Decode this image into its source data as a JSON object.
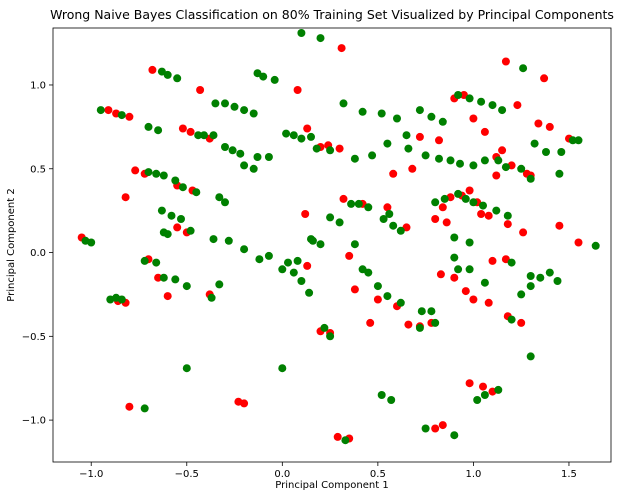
{
  "chart_data": {
    "type": "scatter",
    "title": "Wrong Naive Bayes Classification on 80% Training Set Visualized by Principal Components",
    "xlabel": "Principal Component 1",
    "ylabel": "Principal Component 2",
    "xlim": [
      -1.2,
      1.72
    ],
    "ylim": [
      -1.25,
      1.34
    ],
    "xticks": [
      -1.0,
      -0.5,
      0.0,
      0.5,
      1.0,
      1.5
    ],
    "xtick_labels": [
      "−1.0",
      "−0.5",
      "0.0",
      "0.5",
      "1.0",
      "1.5"
    ],
    "yticks": [
      -1.0,
      -0.5,
      0.0,
      0.5,
      1.0
    ],
    "ytick_labels": [
      "−1.0",
      "−0.5",
      "0.0",
      "0.5",
      "1.0"
    ],
    "grid": false,
    "colors": {
      "red": "#ff0000",
      "green": "#008000"
    },
    "series": [
      {
        "color": "red",
        "points": [
          [
            0.31,
            1.22
          ],
          [
            -0.68,
            1.09
          ],
          [
            0.08,
            0.97
          ],
          [
            -0.43,
            0.97
          ],
          [
            -0.91,
            0.85
          ],
          [
            -0.87,
            0.83
          ],
          [
            -0.8,
            0.81
          ],
          [
            -0.52,
            0.74
          ],
          [
            -0.48,
            0.72
          ],
          [
            -0.38,
            0.68
          ],
          [
            -0.77,
            0.49
          ],
          [
            -0.72,
            0.47
          ],
          [
            -0.55,
            0.4
          ],
          [
            -0.47,
            0.37
          ],
          [
            -0.82,
            0.33
          ],
          [
            -0.55,
            0.15
          ],
          [
            -0.5,
            0.12
          ],
          [
            -1.05,
            0.09
          ],
          [
            -0.86,
            -0.29
          ],
          [
            -0.82,
            -0.3
          ],
          [
            -0.7,
            -0.04
          ],
          [
            -0.6,
            -0.26
          ],
          [
            -0.38,
            -0.25
          ],
          [
            -0.65,
            -0.15
          ],
          [
            -0.8,
            -0.92
          ],
          [
            -0.23,
            -0.89
          ],
          [
            -0.2,
            -0.9
          ],
          [
            0.13,
            0.74
          ],
          [
            0.2,
            0.63
          ],
          [
            0.24,
            0.64
          ],
          [
            0.3,
            0.62
          ],
          [
            0.12,
            0.23
          ],
          [
            0.32,
            0.32
          ],
          [
            0.42,
            0.29
          ],
          [
            0.55,
            0.27
          ],
          [
            0.65,
            0.15
          ],
          [
            0.13,
            -0.08
          ],
          [
            0.35,
            -0.02
          ],
          [
            0.38,
            -0.22
          ],
          [
            0.5,
            -0.28
          ],
          [
            0.6,
            -0.32
          ],
          [
            0.66,
            -0.43
          ],
          [
            0.72,
            -0.44
          ],
          [
            0.78,
            -0.42
          ],
          [
            0.2,
            -0.47
          ],
          [
            0.25,
            -0.48
          ],
          [
            0.29,
            -1.1
          ],
          [
            0.35,
            -1.11
          ],
          [
            0.8,
            -1.05
          ],
          [
            0.84,
            -1.03
          ],
          [
            0.98,
            -0.78
          ],
          [
            1.05,
            -0.8
          ],
          [
            1.1,
            -0.83
          ],
          [
            0.9,
            0.92
          ],
          [
            0.95,
            0.94
          ],
          [
            1.0,
            0.8
          ],
          [
            1.06,
            0.72
          ],
          [
            1.17,
            1.14
          ],
          [
            1.23,
            0.88
          ],
          [
            1.37,
            1.04
          ],
          [
            1.34,
            0.77
          ],
          [
            1.4,
            0.75
          ],
          [
            1.15,
            0.61
          ],
          [
            1.12,
            0.57
          ],
          [
            1.2,
            0.52
          ],
          [
            1.28,
            0.47
          ],
          [
            1.3,
            0.46
          ],
          [
            1.12,
            0.46
          ],
          [
            0.94,
            0.34
          ],
          [
            0.98,
            0.37
          ],
          [
            1.02,
            0.3
          ],
          [
            0.88,
            0.33
          ],
          [
            0.84,
            0.27
          ],
          [
            0.8,
            0.2
          ],
          [
            0.86,
            0.18
          ],
          [
            1.08,
            0.22
          ],
          [
            1.18,
            0.17
          ],
          [
            1.26,
            0.12
          ],
          [
            1.1,
            -0.05
          ],
          [
            1.17,
            -0.04
          ],
          [
            0.83,
            -0.13
          ],
          [
            0.9,
            -0.15
          ],
          [
            0.96,
            -0.23
          ],
          [
            1.0,
            -0.28
          ],
          [
            1.08,
            -0.3
          ],
          [
            1.18,
            -0.38
          ],
          [
            1.25,
            -0.42
          ],
          [
            1.45,
            0.16
          ],
          [
            1.55,
            0.06
          ],
          [
            1.5,
            0.68
          ],
          [
            0.72,
            0.69
          ],
          [
            0.82,
            0.67
          ],
          [
            0.68,
            0.5
          ],
          [
            0.58,
            0.47
          ],
          [
            0.46,
            -0.42
          ],
          [
            1.04,
            0.23
          ]
        ]
      },
      {
        "color": "green",
        "points": [
          [
            0.1,
            1.31
          ],
          [
            0.2,
            1.28
          ],
          [
            -0.63,
            1.08
          ],
          [
            -0.6,
            1.06
          ],
          [
            -0.55,
            1.04
          ],
          [
            -0.13,
            1.07
          ],
          [
            -0.1,
            1.05
          ],
          [
            -0.04,
            1.03
          ],
          [
            -0.35,
            0.89
          ],
          [
            -0.3,
            0.89
          ],
          [
            -0.25,
            0.87
          ],
          [
            -0.2,
            0.85
          ],
          [
            -0.15,
            0.83
          ],
          [
            -0.41,
            0.7
          ],
          [
            -0.36,
            0.7
          ],
          [
            -0.44,
            0.7
          ],
          [
            -0.7,
            0.75
          ],
          [
            -0.65,
            0.73
          ],
          [
            -0.3,
            0.63
          ],
          [
            -0.26,
            0.61
          ],
          [
            -0.22,
            0.59
          ],
          [
            -0.13,
            0.57
          ],
          [
            -0.07,
            0.57
          ],
          [
            -0.2,
            0.52
          ],
          [
            -0.15,
            0.5
          ],
          [
            0.02,
            0.71
          ],
          [
            0.06,
            0.7
          ],
          [
            0.1,
            0.68
          ],
          [
            0.15,
            0.69
          ],
          [
            0.18,
            0.62
          ],
          [
            0.25,
            0.61
          ],
          [
            0.38,
            0.56
          ],
          [
            -0.7,
            0.48
          ],
          [
            -0.66,
            0.47
          ],
          [
            -0.62,
            0.46
          ],
          [
            -0.56,
            0.43
          ],
          [
            -0.52,
            0.39
          ],
          [
            -0.45,
            0.36
          ],
          [
            -0.33,
            0.33
          ],
          [
            -0.3,
            0.3
          ],
          [
            -0.63,
            0.25
          ],
          [
            -0.58,
            0.22
          ],
          [
            -0.53,
            0.2
          ],
          [
            -0.48,
            0.13
          ],
          [
            -0.36,
            0.08
          ],
          [
            -0.28,
            0.07
          ],
          [
            -0.2,
            0.02
          ],
          [
            -0.07,
            -0.02
          ],
          [
            0.0,
            -0.1
          ],
          [
            0.06,
            -0.12
          ],
          [
            0.03,
            -0.06
          ],
          [
            0.1,
            -0.17
          ],
          [
            0.15,
            0.08
          ],
          [
            0.16,
            0.07
          ],
          [
            0.2,
            0.05
          ],
          [
            0.25,
            0.21
          ],
          [
            0.3,
            0.18
          ],
          [
            0.36,
            0.29
          ],
          [
            0.4,
            0.29
          ],
          [
            0.45,
            0.27
          ],
          [
            0.53,
            0.2
          ],
          [
            0.56,
            0.23
          ],
          [
            0.58,
            0.16
          ],
          [
            0.62,
            0.13
          ],
          [
            0.8,
            0.3
          ],
          [
            0.85,
            0.32
          ],
          [
            0.92,
            0.35
          ],
          [
            0.96,
            0.32
          ],
          [
            1.0,
            0.3
          ],
          [
            1.05,
            0.28
          ],
          [
            1.12,
            0.25
          ],
          [
            1.18,
            0.22
          ],
          [
            0.75,
            0.58
          ],
          [
            0.82,
            0.56
          ],
          [
            0.88,
            0.55
          ],
          [
            0.93,
            0.53
          ],
          [
            1.0,
            0.52
          ],
          [
            1.06,
            0.55
          ],
          [
            1.13,
            0.55
          ],
          [
            1.17,
            0.51
          ],
          [
            1.25,
            0.5
          ],
          [
            1.3,
            0.44
          ],
          [
            0.72,
            0.85
          ],
          [
            0.78,
            0.81
          ],
          [
            0.84,
            0.78
          ],
          [
            0.92,
            0.94
          ],
          [
            0.98,
            0.92
          ],
          [
            1.04,
            0.9
          ],
          [
            1.1,
            0.88
          ],
          [
            1.15,
            0.85
          ],
          [
            1.26,
            1.1
          ],
          [
            1.32,
            0.65
          ],
          [
            1.52,
            0.67
          ],
          [
            1.55,
            0.67
          ],
          [
            1.64,
            0.04
          ],
          [
            1.4,
            -0.12
          ],
          [
            1.35,
            -0.15
          ],
          [
            1.3,
            -0.2
          ],
          [
            1.25,
            -0.25
          ],
          [
            1.3,
            -0.62
          ],
          [
            1.2,
            -0.4
          ],
          [
            1.06,
            -0.18
          ],
          [
            0.98,
            -0.1
          ],
          [
            0.9,
            -0.03
          ],
          [
            0.92,
            -0.1
          ],
          [
            0.52,
            0.83
          ],
          [
            0.42,
            0.84
          ],
          [
            0.32,
            0.89
          ],
          [
            0.6,
            0.8
          ],
          [
            0.65,
            0.7
          ],
          [
            0.55,
            0.65
          ],
          [
            0.47,
            0.58
          ],
          [
            0.38,
            0.05
          ],
          [
            0.42,
            -0.1
          ],
          [
            0.45,
            -0.12
          ],
          [
            0.5,
            -0.2
          ],
          [
            0.55,
            -0.26
          ],
          [
            0.62,
            -0.3
          ],
          [
            0.73,
            -0.35
          ],
          [
            0.78,
            -0.35
          ],
          [
            0.8,
            -0.42
          ],
          [
            0.72,
            -0.45
          ],
          [
            0.52,
            -0.85
          ],
          [
            0.57,
            -0.88
          ],
          [
            0.75,
            -1.05
          ],
          [
            0.9,
            -1.09
          ],
          [
            0.22,
            -0.45
          ],
          [
            0.25,
            -0.5
          ],
          [
            0.33,
            -1.12
          ],
          [
            1.02,
            -0.88
          ],
          [
            1.06,
            -0.85
          ],
          [
            1.13,
            -0.82
          ],
          [
            -0.72,
            -0.93
          ],
          [
            -0.5,
            -0.69
          ],
          [
            0.0,
            -0.69
          ],
          [
            -0.9,
            -0.28
          ],
          [
            -0.87,
            -0.27
          ],
          [
            -0.84,
            -0.28
          ],
          [
            -0.72,
            -0.05
          ],
          [
            -0.66,
            -0.06
          ],
          [
            -0.62,
            -0.15
          ],
          [
            -0.56,
            -0.16
          ],
          [
            -0.5,
            -0.2
          ],
          [
            -0.37,
            -0.27
          ],
          [
            -0.33,
            -0.19
          ],
          [
            -0.62,
            0.12
          ],
          [
            -0.6,
            0.11
          ],
          [
            -1.03,
            0.07
          ],
          [
            -1.0,
            0.06
          ],
          [
            -0.95,
            0.85
          ],
          [
            -0.84,
            0.82
          ],
          [
            -0.12,
            -0.04
          ],
          [
            0.08,
            -0.05
          ],
          [
            0.14,
            -0.24
          ],
          [
            1.2,
            -0.06
          ],
          [
            1.3,
            -0.14
          ],
          [
            1.44,
            -0.17
          ],
          [
            1.46,
            0.6
          ],
          [
            1.38,
            0.6
          ],
          [
            1.45,
            0.47
          ],
          [
            0.66,
            0.62
          ],
          [
            0.9,
            0.09
          ],
          [
            0.98,
            0.06
          ]
        ]
      }
    ]
  }
}
